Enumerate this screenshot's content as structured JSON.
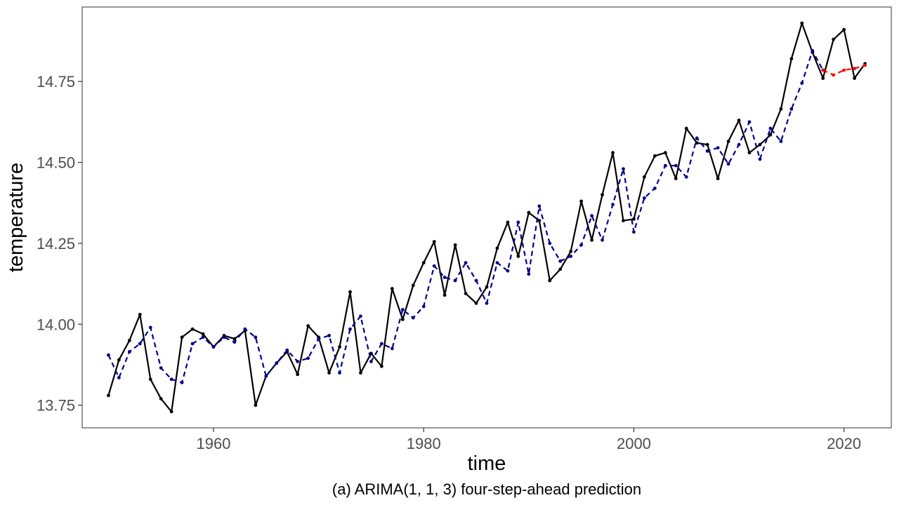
{
  "chart_data": {
    "type": "line",
    "xlabel": "time",
    "ylabel": "temperature",
    "caption": "(a) ARIMA(1, 1, 3) four-step-ahead prediction",
    "xlim": [
      1947.5,
      2024.5
    ],
    "ylim": [
      13.68,
      14.98
    ],
    "x_ticks": [
      1960,
      1980,
      2000,
      2020
    ],
    "x_tick_labels": [
      "1960",
      "1980",
      "2000",
      "2020"
    ],
    "y_ticks": [
      13.75,
      14.0,
      14.25,
      14.5,
      14.75
    ],
    "y_tick_labels": [
      "13.75",
      "14.00",
      "14.25",
      "14.50",
      "14.75"
    ],
    "grid": false,
    "legend": "none",
    "series": [
      {
        "role": "observed",
        "color": "#000000",
        "style": "solid",
        "x": [
          1950,
          1951,
          1952,
          1953,
          1954,
          1955,
          1956,
          1957,
          1958,
          1959,
          1960,
          1961,
          1962,
          1963,
          1964,
          1965,
          1966,
          1967,
          1968,
          1969,
          1970,
          1971,
          1972,
          1973,
          1974,
          1975,
          1976,
          1977,
          1978,
          1979,
          1980,
          1981,
          1982,
          1983,
          1984,
          1985,
          1986,
          1987,
          1988,
          1989,
          1990,
          1991,
          1992,
          1993,
          1994,
          1995,
          1996,
          1997,
          1998,
          1999,
          2000,
          2001,
          2002,
          2003,
          2004,
          2005,
          2006,
          2007,
          2008,
          2009,
          2010,
          2011,
          2012,
          2013,
          2014,
          2015,
          2016,
          2017,
          2018,
          2019,
          2020,
          2021,
          2022
        ],
        "y": [
          13.78,
          13.89,
          13.95,
          14.03,
          13.83,
          13.77,
          13.73,
          13.96,
          13.985,
          13.97,
          13.93,
          13.965,
          13.955,
          13.98,
          13.75,
          13.84,
          13.88,
          13.915,
          13.845,
          13.995,
          13.96,
          13.85,
          13.93,
          14.1,
          13.85,
          13.91,
          13.87,
          14.11,
          14.015,
          14.12,
          14.19,
          14.255,
          14.09,
          14.245,
          14.095,
          14.065,
          14.115,
          14.235,
          14.315,
          14.21,
          14.345,
          14.32,
          14.135,
          14.17,
          14.225,
          14.38,
          14.26,
          14.4,
          14.53,
          14.32,
          14.325,
          14.455,
          14.52,
          14.53,
          14.45,
          14.605,
          14.56,
          14.555,
          14.45,
          14.565,
          14.63,
          14.53,
          14.555,
          14.585,
          14.665,
          14.82,
          14.93,
          14.84,
          14.76,
          14.88,
          14.91,
          14.76,
          14.805
        ]
      },
      {
        "role": "fitted",
        "color": "#00008b",
        "style": "dashed",
        "x": [
          1950,
          1951,
          1952,
          1953,
          1954,
          1955,
          1956,
          1957,
          1958,
          1959,
          1960,
          1961,
          1962,
          1963,
          1964,
          1965,
          1966,
          1967,
          1968,
          1969,
          1970,
          1971,
          1972,
          1973,
          1974,
          1975,
          1976,
          1977,
          1978,
          1979,
          1980,
          1981,
          1982,
          1983,
          1984,
          1985,
          1986,
          1987,
          1988,
          1989,
          1990,
          1991,
          1992,
          1993,
          1994,
          1995,
          1996,
          1997,
          1998,
          1999,
          2000,
          2001,
          2002,
          2003,
          2004,
          2005,
          2006,
          2007,
          2008,
          2009,
          2010,
          2011,
          2012,
          2013,
          2014,
          2015,
          2016,
          2017,
          2018
        ],
        "y": [
          13.905,
          13.835,
          13.915,
          13.94,
          13.99,
          13.865,
          13.83,
          13.82,
          13.94,
          13.96,
          13.93,
          13.96,
          13.945,
          13.985,
          13.96,
          13.84,
          13.88,
          13.92,
          13.885,
          13.895,
          13.955,
          13.965,
          13.85,
          13.985,
          14.025,
          13.885,
          13.94,
          13.925,
          14.045,
          14.02,
          14.055,
          14.18,
          14.145,
          14.135,
          14.19,
          14.135,
          14.065,
          14.19,
          14.165,
          14.315,
          14.155,
          14.365,
          14.25,
          14.195,
          14.21,
          14.245,
          14.335,
          14.26,
          14.37,
          14.48,
          14.285,
          14.39,
          14.42,
          14.49,
          14.49,
          14.455,
          14.575,
          14.535,
          14.545,
          14.495,
          14.555,
          14.625,
          14.51,
          14.605,
          14.565,
          14.665,
          14.745,
          14.845,
          14.785
        ]
      },
      {
        "role": "forecast",
        "color": "#ff0000",
        "style": "dashed",
        "x": [
          2018,
          2019,
          2020,
          2021,
          2022
        ],
        "y": [
          14.785,
          14.77,
          14.785,
          14.79,
          14.8
        ]
      }
    ]
  }
}
